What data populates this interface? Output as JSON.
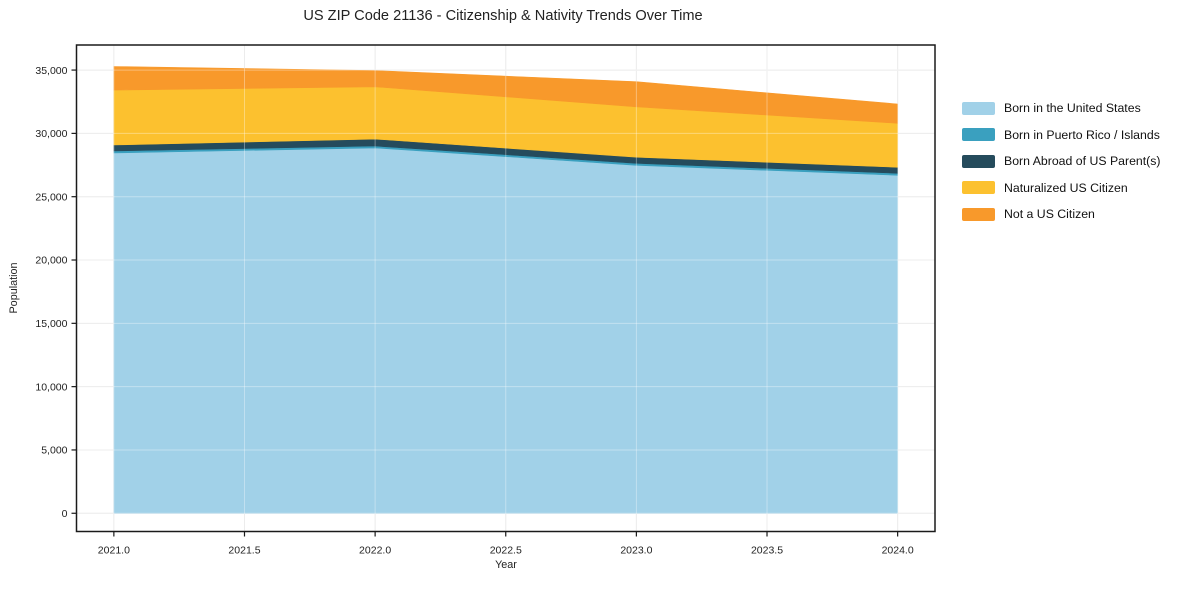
{
  "chart": {
    "title": "US ZIP Code 21136 - Citizenship & Nativity Trends Over Time",
    "xlabel": "Year",
    "ylabel": "Population"
  },
  "chart_data": {
    "type": "area",
    "stacked": true,
    "title": "US ZIP Code 21136 - Citizenship & Nativity Trends Over Time",
    "xlabel": "Year",
    "ylabel": "Population",
    "x": [
      2021,
      2022,
      2023,
      2024
    ],
    "series": [
      {
        "name": "Born in the United States",
        "color": "#A1D1E8",
        "values": [
          28450,
          28850,
          27480,
          26690
        ]
      },
      {
        "name": "Born in Puerto Rico / Islands",
        "color": "#3AA0BF",
        "values": [
          160,
          150,
          160,
          160
        ]
      },
      {
        "name": "Born Abroad of US Parent(s)",
        "color": "#254B5C",
        "values": [
          470,
          550,
          480,
          470
        ]
      },
      {
        "name": "Naturalized US Citizen",
        "color": "#FCC12F",
        "values": [
          4340,
          4130,
          3980,
          3480
        ]
      },
      {
        "name": "Not a US Citizen",
        "color": "#F8992B",
        "values": [
          1860,
          1280,
          1980,
          1520
        ]
      }
    ],
    "totals": [
      35280,
      34960,
      34080,
      32320
    ],
    "x_ticks": [
      {
        "value": 2021.0,
        "label": "2021.0"
      },
      {
        "value": 2021.5,
        "label": "2021.5"
      },
      {
        "value": 2022.0,
        "label": "2022.0"
      },
      {
        "value": 2022.5,
        "label": "2022.5"
      },
      {
        "value": 2023.0,
        "label": "2023.0"
      },
      {
        "value": 2023.5,
        "label": "2023.5"
      },
      {
        "value": 2024.0,
        "label": "2024.0"
      }
    ],
    "y_ticks": [
      {
        "value": 0,
        "label": "0"
      },
      {
        "value": 5000,
        "label": "5,000"
      },
      {
        "value": 10000,
        "label": "10,000"
      },
      {
        "value": 15000,
        "label": "15,000"
      },
      {
        "value": 20000,
        "label": "20,000"
      },
      {
        "value": 25000,
        "label": "25,000"
      },
      {
        "value": 30000,
        "label": "30,000"
      },
      {
        "value": 35000,
        "label": "35,000"
      }
    ],
    "xlim": [
      2020.857,
      2024.143
    ],
    "ylim": [
      -1440,
      36980
    ],
    "grid": true,
    "legend_position": "right",
    "colors": {
      "grid": "#E3E3E3",
      "grid_overlay": "rgba(255,255,255,0.35)",
      "frame": "#1a1a1a",
      "tick_text": "#222222",
      "background": "#ffffff"
    }
  }
}
